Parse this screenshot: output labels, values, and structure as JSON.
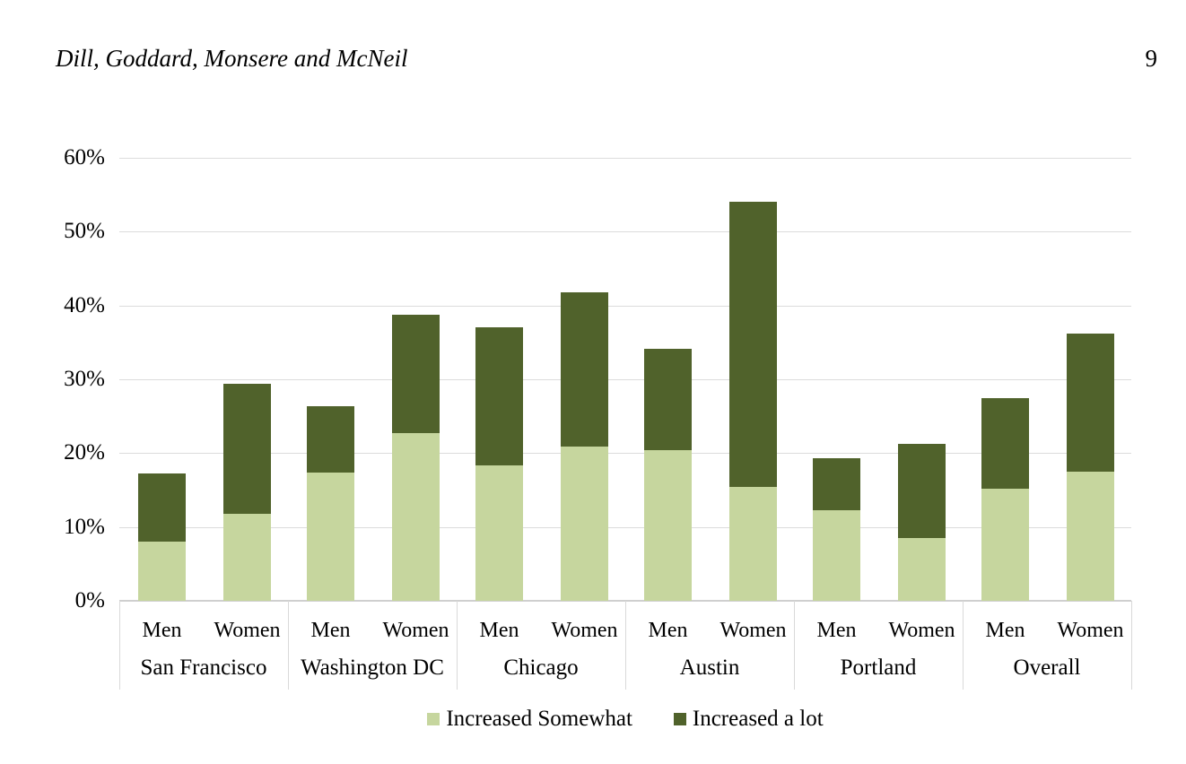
{
  "header": {
    "authors": "Dill, Goddard, Monsere and McNeil",
    "page_number": "9"
  },
  "chart_data": {
    "type": "bar",
    "subtype": "stacked-column",
    "title": "",
    "xlabel": "",
    "ylabel": "",
    "ylim": [
      0,
      60
    ],
    "y_axis": {
      "ticks": [
        "0%",
        "10%",
        "20%",
        "30%",
        "40%",
        "50%",
        "60%"
      ],
      "step": 10,
      "grid": true
    },
    "legend_position": "bottom",
    "series_meta": [
      {
        "name": "Increased Somewhat",
        "color": "#C6D69E"
      },
      {
        "name": "Increased a lot",
        "color": "#50622B"
      }
    ],
    "groups": [
      {
        "label": "San Francisco",
        "bars": [
          {
            "label": "Men",
            "increased_somewhat": 8.0,
            "increased_a_lot": 9.3,
            "total": 17.3
          },
          {
            "label": "Women",
            "increased_somewhat": 11.8,
            "increased_a_lot": 17.6,
            "total": 29.4
          }
        ]
      },
      {
        "label": "Washington DC",
        "bars": [
          {
            "label": "Men",
            "increased_somewhat": 17.4,
            "increased_a_lot": 9.0,
            "total": 26.4
          },
          {
            "label": "Women",
            "increased_somewhat": 22.7,
            "increased_a_lot": 16.0,
            "total": 38.7
          }
        ]
      },
      {
        "label": "Chicago",
        "bars": [
          {
            "label": "Men",
            "increased_somewhat": 18.3,
            "increased_a_lot": 18.8,
            "total": 37.1
          },
          {
            "label": "Women",
            "increased_somewhat": 20.9,
            "increased_a_lot": 20.9,
            "total": 41.8
          }
        ]
      },
      {
        "label": "Austin",
        "bars": [
          {
            "label": "Men",
            "increased_somewhat": 20.4,
            "increased_a_lot": 13.7,
            "total": 34.1
          },
          {
            "label": "Women",
            "increased_somewhat": 15.4,
            "increased_a_lot": 38.6,
            "total": 54.0
          }
        ]
      },
      {
        "label": "Portland",
        "bars": [
          {
            "label": "Men",
            "increased_somewhat": 12.3,
            "increased_a_lot": 7.0,
            "total": 19.3
          },
          {
            "label": "Women",
            "increased_somewhat": 8.5,
            "increased_a_lot": 12.8,
            "total": 21.3
          }
        ]
      },
      {
        "label": "Overall",
        "bars": [
          {
            "label": "Men",
            "increased_somewhat": 15.2,
            "increased_a_lot": 12.2,
            "total": 27.4
          },
          {
            "label": "Women",
            "increased_somewhat": 17.5,
            "increased_a_lot": 18.7,
            "total": 36.2
          }
        ]
      }
    ]
  }
}
